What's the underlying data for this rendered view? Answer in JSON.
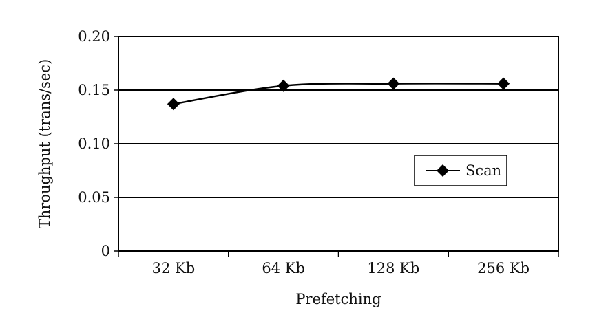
{
  "chart_data": {
    "type": "line",
    "categories": [
      "32 Kb",
      "64 Kb",
      "128 Kb",
      "256 Kb"
    ],
    "series": [
      {
        "name": "Scan",
        "values": [
          0.137,
          0.154,
          0.156,
          0.156
        ],
        "color": "#000000",
        "marker": "diamond"
      }
    ],
    "xlabel": "Prefetching",
    "ylabel": "Throughput (trans/sec)",
    "ylim": [
      0,
      0.2
    ],
    "yticks": [
      0,
      0.05,
      0.1,
      0.15,
      0.2
    ],
    "ytick_labels": [
      "0",
      "0.05",
      "0.10",
      "0.15",
      "0.20"
    ],
    "grid": true,
    "legend_position": "lower-right",
    "smooth": true
  }
}
